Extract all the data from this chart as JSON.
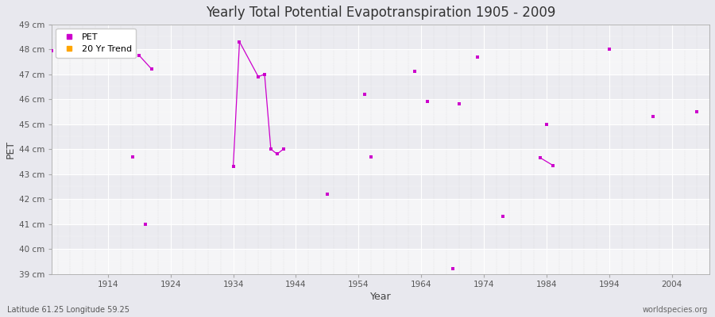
{
  "title": "Yearly Total Potential Evapotranspiration 1905 - 2009",
  "xlabel": "Year",
  "ylabel": "PET",
  "subtitle_left": "Latitude 61.25 Longitude 59.25",
  "subtitle_right": "worldspecies.org",
  "background_color": "#e8e8ee",
  "plot_background_color": "#ebebf0",
  "ylim": [
    39,
    49
  ],
  "xlim": [
    1905,
    2010
  ],
  "ytick_labels": [
    "39 cm",
    "40 cm",
    "41 cm",
    "42 cm",
    "43 cm",
    "44 cm",
    "45 cm",
    "46 cm",
    "47 cm",
    "48 cm",
    "49 cm"
  ],
  "ytick_values": [
    39,
    40,
    41,
    42,
    43,
    44,
    45,
    46,
    47,
    48,
    49
  ],
  "xtick_values": [
    1914,
    1924,
    1934,
    1944,
    1954,
    1964,
    1974,
    1984,
    1994,
    2004
  ],
  "pet_color": "#cc00cc",
  "trend_color": "#ffa500",
  "isolated_points": [
    {
      "year": 1905,
      "value": 47.95
    },
    {
      "year": 1918,
      "value": 43.7
    },
    {
      "year": 1920,
      "value": 41.0
    },
    {
      "year": 1949,
      "value": 42.2
    },
    {
      "year": 1955,
      "value": 46.2
    },
    {
      "year": 1956,
      "value": 43.7
    },
    {
      "year": 1963,
      "value": 47.1
    },
    {
      "year": 1965,
      "value": 45.9
    },
    {
      "year": 1969,
      "value": 39.2
    },
    {
      "year": 1970,
      "value": 45.8
    },
    {
      "year": 1973,
      "value": 47.7
    },
    {
      "year": 1977,
      "value": 41.3
    },
    {
      "year": 1984,
      "value": 45.0
    },
    {
      "year": 1994,
      "value": 48.0
    },
    {
      "year": 2001,
      "value": 45.3
    },
    {
      "year": 2008,
      "value": 45.5
    }
  ],
  "line_segments": [
    {
      "years": [
        1919,
        1921
      ],
      "values": [
        47.75,
        47.2
      ]
    },
    {
      "years": [
        1934,
        1935,
        1938,
        1939,
        1940,
        1941,
        1942
      ],
      "values": [
        43.3,
        48.3,
        46.9,
        47.0,
        44.0,
        43.8,
        44.0
      ]
    },
    {
      "years": [
        1983,
        1985
      ],
      "values": [
        43.65,
        43.35
      ]
    }
  ]
}
